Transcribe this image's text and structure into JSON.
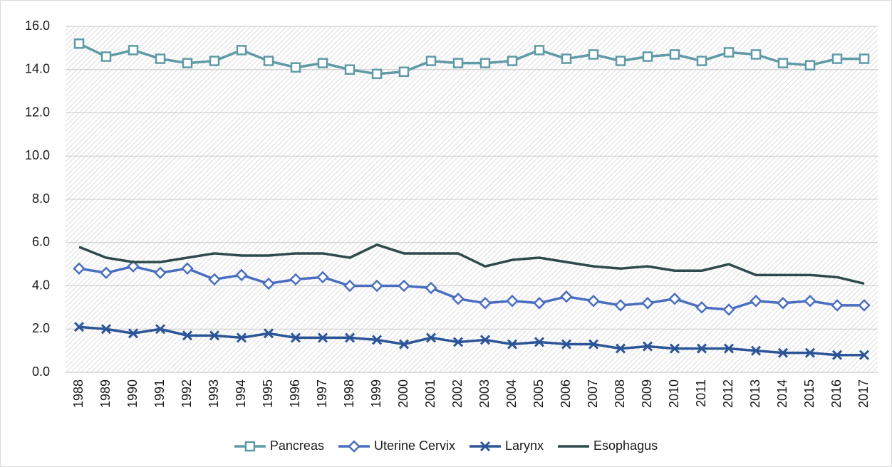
{
  "chart_data": {
    "type": "line",
    "categories": [
      "1988",
      "1989",
      "1990",
      "1991",
      "1992",
      "1993",
      "1994",
      "1995",
      "1996",
      "1997",
      "1998",
      "1999",
      "2000",
      "2001",
      "2002",
      "2003",
      "2004",
      "2005",
      "2006",
      "2007",
      "2008",
      "2009",
      "2010",
      "2011",
      "2012",
      "2013",
      "2014",
      "2015",
      "2016",
      "2017"
    ],
    "series": [
      {
        "name": "Pancreas",
        "color": "#5f9aa6",
        "marker": "square",
        "values": [
          15.2,
          14.6,
          14.9,
          14.5,
          14.3,
          14.4,
          14.9,
          14.4,
          14.1,
          14.3,
          14.0,
          13.8,
          13.9,
          14.4,
          14.3,
          14.3,
          14.4,
          14.9,
          14.5,
          14.7,
          14.4,
          14.6,
          14.7,
          14.4,
          14.8,
          14.7,
          14.3,
          14.2,
          14.5,
          14.5
        ]
      },
      {
        "name": "Uterine Cervix",
        "color": "#4a6ebf",
        "marker": "diamond",
        "values": [
          4.8,
          4.6,
          4.9,
          4.6,
          4.8,
          4.3,
          4.5,
          4.1,
          4.3,
          4.4,
          4.0,
          4.0,
          4.0,
          3.9,
          3.4,
          3.2,
          3.3,
          3.2,
          3.5,
          3.3,
          3.1,
          3.2,
          3.4,
          3.0,
          2.9,
          3.3,
          3.2,
          3.3,
          3.1,
          3.1
        ]
      },
      {
        "name": "Larynx",
        "color": "#2c5598",
        "marker": "x",
        "values": [
          2.1,
          2.0,
          1.8,
          2.0,
          1.7,
          1.7,
          1.6,
          1.8,
          1.6,
          1.6,
          1.6,
          1.5,
          1.3,
          1.6,
          1.4,
          1.5,
          1.3,
          1.4,
          1.3,
          1.3,
          1.1,
          1.2,
          1.1,
          1.1,
          1.1,
          1.0,
          0.9,
          0.9,
          0.8,
          0.8
        ]
      },
      {
        "name": "Esophagus",
        "color": "#2f4a4c",
        "marker": "none",
        "values": [
          5.8,
          5.3,
          5.1,
          5.1,
          5.3,
          5.5,
          5.4,
          5.4,
          5.5,
          5.5,
          5.3,
          5.9,
          5.5,
          5.5,
          5.5,
          4.9,
          5.2,
          5.3,
          5.1,
          4.9,
          4.8,
          4.9,
          4.7,
          4.7,
          5.0,
          4.5,
          4.5,
          4.5,
          4.4,
          4.1
        ]
      }
    ],
    "ylim": [
      0,
      16
    ],
    "yticks": [
      {
        "value": 0,
        "label": "0.0"
      },
      {
        "value": 2,
        "label": "2.0"
      },
      {
        "value": 4,
        "label": "4.0"
      },
      {
        "value": 6,
        "label": "6.0"
      },
      {
        "value": 8,
        "label": "8.0"
      },
      {
        "value": 10,
        "label": "10.0"
      },
      {
        "value": 12,
        "label": "12.0"
      },
      {
        "value": 14,
        "label": "14.0"
      },
      {
        "value": 16,
        "label": "16.0"
      }
    ],
    "grid": true,
    "legend": "bottom"
  }
}
